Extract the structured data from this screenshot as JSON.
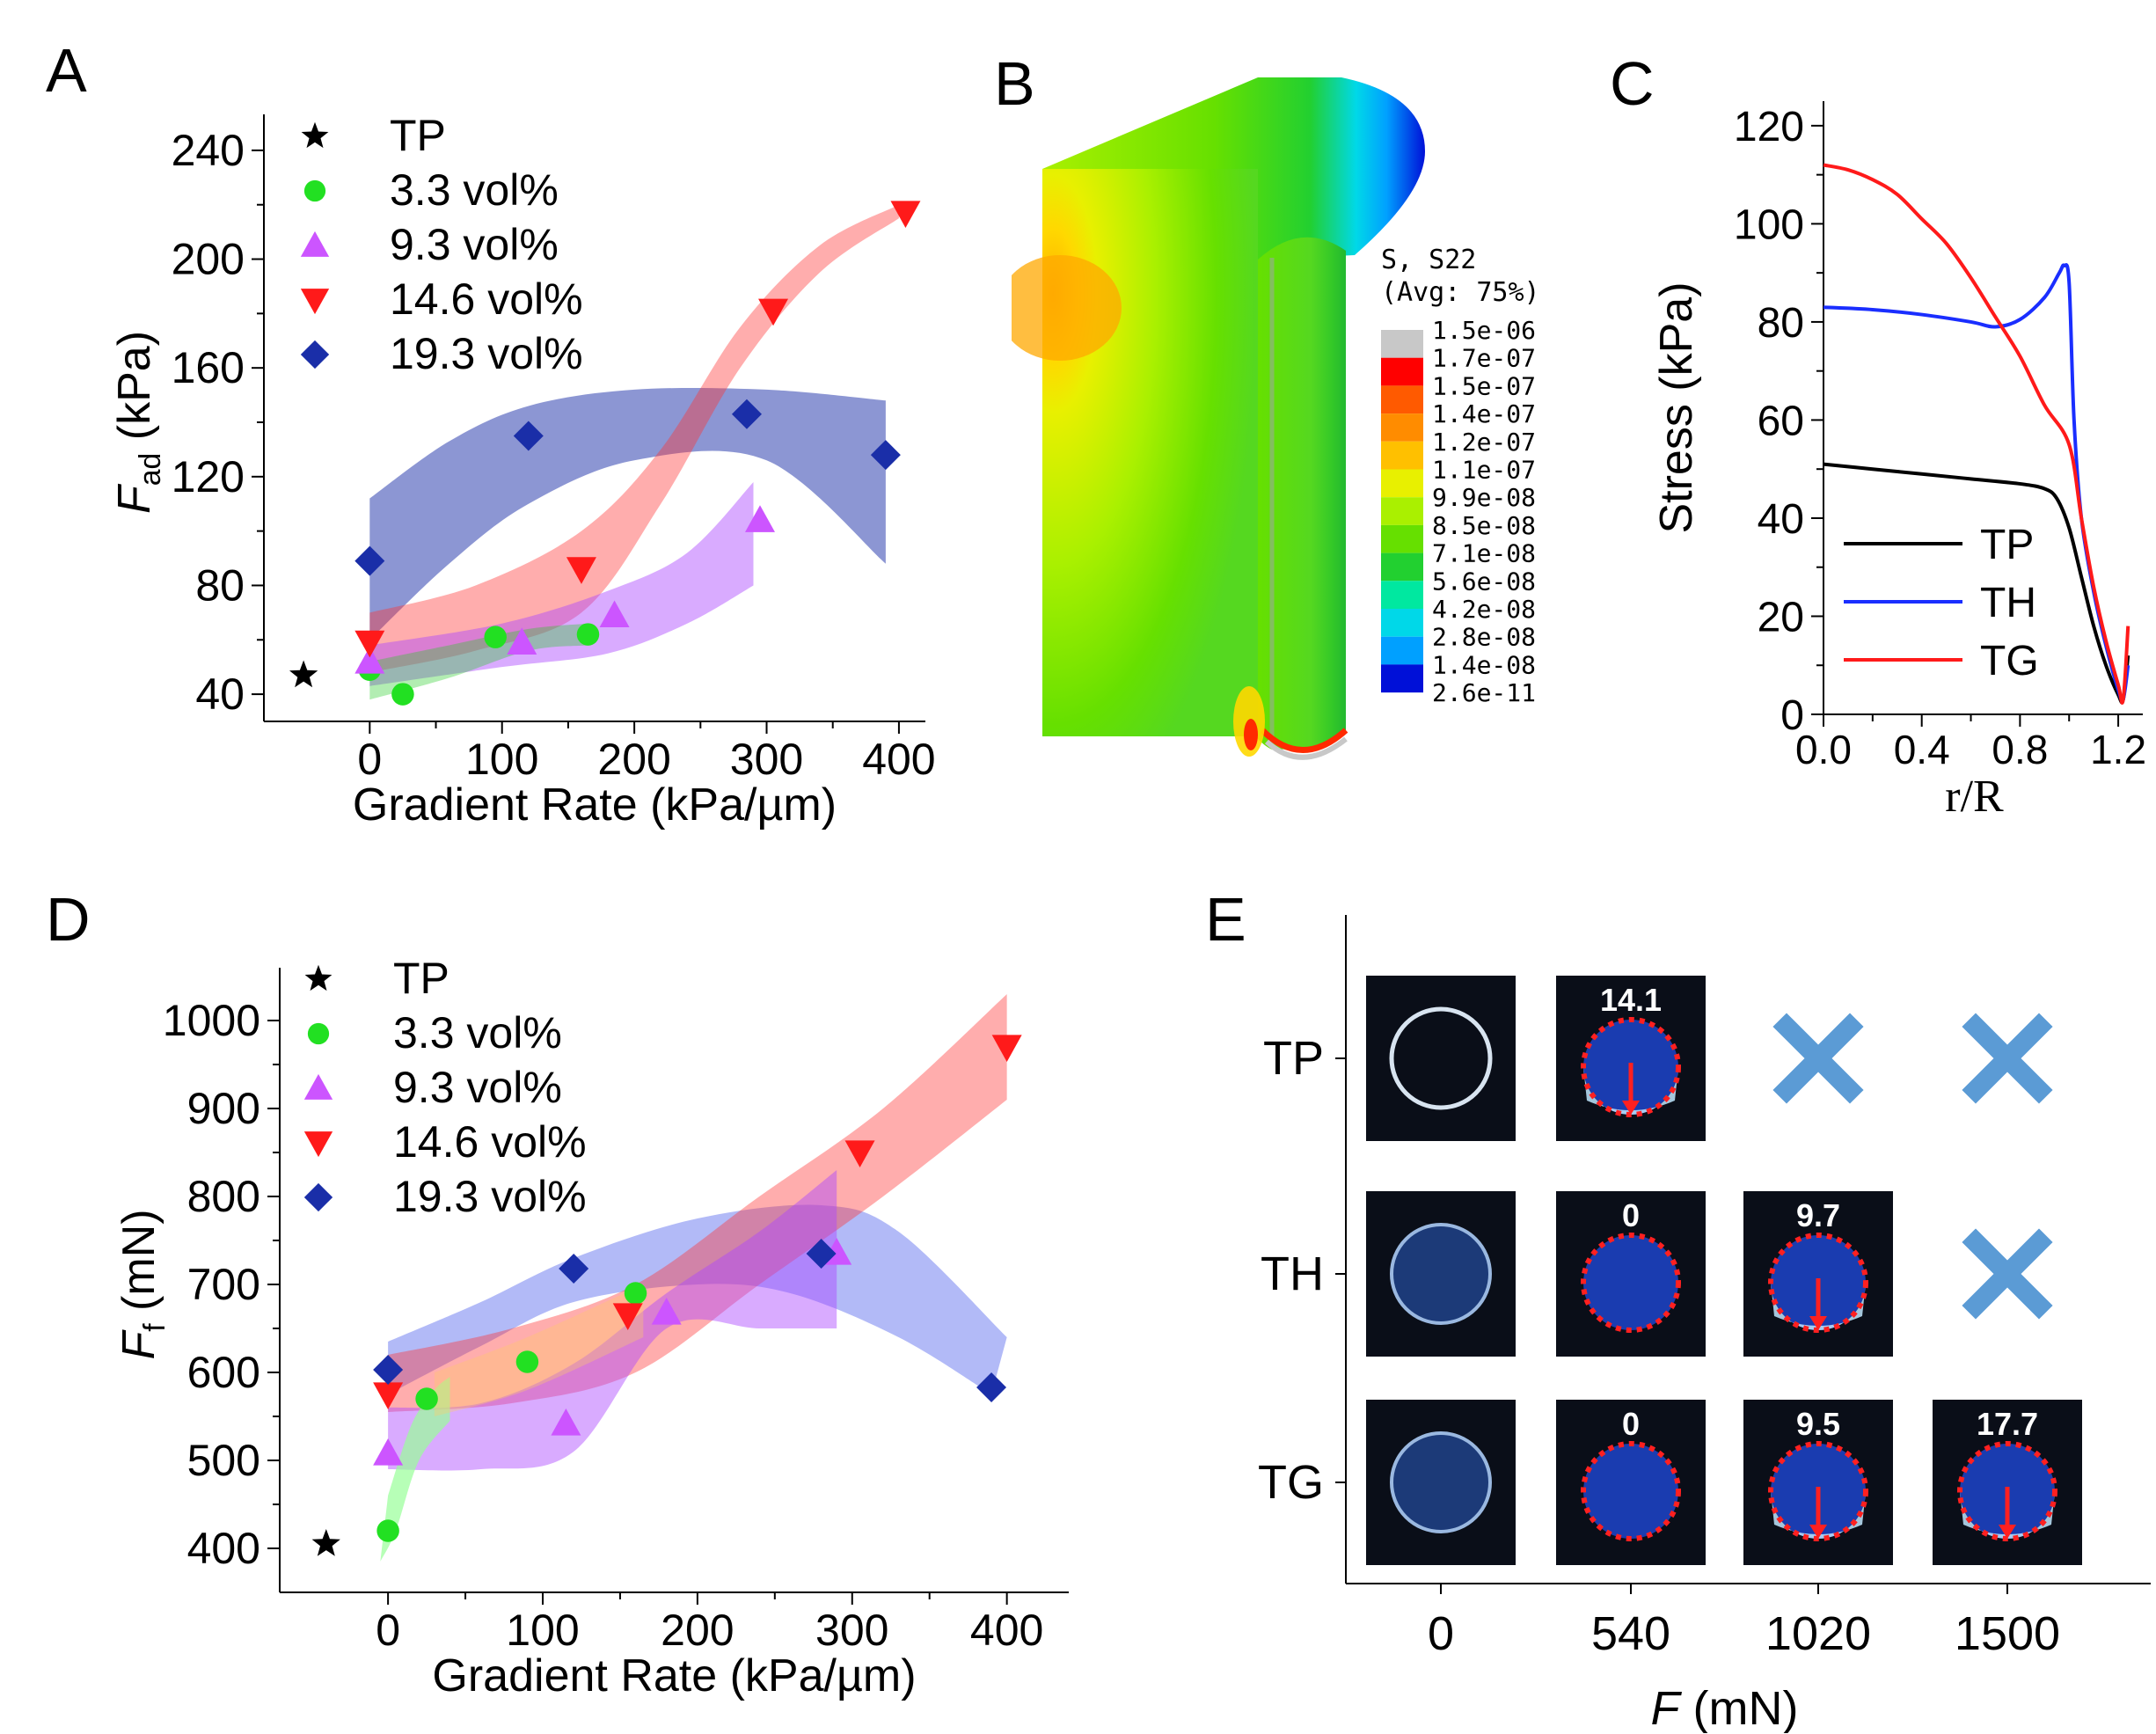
{
  "panels": {
    "A": "A",
    "B": "B",
    "C": "C",
    "D": "D",
    "E": "E"
  },
  "legend_ad": [
    {
      "label": "TP",
      "marker": "star",
      "color": "#000000"
    },
    {
      "label": "3.3 vol%",
      "marker": "circle",
      "color": "#22e022"
    },
    {
      "label": "9.3 vol%",
      "marker": "tri-up",
      "color": "#cc55ff"
    },
    {
      "label": "14.6 vol%",
      "marker": "tri-down",
      "color": "#ff1a1a"
    },
    {
      "label": "19.3 vol%",
      "marker": "diamond",
      "color": "#1a2ea8"
    }
  ],
  "chart_data": [
    {
      "id": "A",
      "type": "scatter",
      "xlabel": "Gradient Rate (kPa/µm)",
      "ylabel_main": "F",
      "ylabel_sub": "ad",
      "ylabel_unit": " (kPa)",
      "xlim": [
        -80,
        420
      ],
      "ylim": [
        30,
        250
      ],
      "xticks": [
        0,
        100,
        200,
        300,
        400
      ],
      "yticks": [
        40,
        80,
        120,
        160,
        200,
        240
      ],
      "series": [
        {
          "name": "TP",
          "marker": "star",
          "color": "#000000",
          "points": [
            [
              -50,
              47
            ]
          ]
        },
        {
          "name": "3.3 vol%",
          "marker": "circle",
          "color": "#22e022",
          "points": [
            [
              0,
              49
            ],
            [
              25,
              40
            ],
            [
              95,
              61
            ],
            [
              165,
              62
            ]
          ]
        },
        {
          "name": "9.3 vol%",
          "marker": "tri-up",
          "color": "#cc55ff",
          "points": [
            [
              0,
              52
            ],
            [
              115,
              59
            ],
            [
              185,
              69
            ],
            [
              295,
              104
            ]
          ]
        },
        {
          "name": "14.6 vol%",
          "marker": "tri-down",
          "color": "#ff1a1a",
          "points": [
            [
              0,
              59
            ],
            [
              160,
              86
            ],
            [
              305,
              181
            ],
            [
              405,
              217
            ]
          ]
        },
        {
          "name": "19.3 vol%",
          "marker": "diamond",
          "color": "#1a2ea8",
          "points": [
            [
              0,
              89
            ],
            [
              120,
              135
            ],
            [
              285,
              143
            ],
            [
              390,
              128
            ]
          ]
        }
      ],
      "bands": [
        {
          "color": "#1a2ea8",
          "opacity": 0.5,
          "upper": [
            [
              0,
              112
            ],
            [
              60,
              133
            ],
            [
              120,
              146
            ],
            [
              200,
              152
            ],
            [
              300,
              152
            ],
            [
              390,
              148
            ]
          ],
          "lower": [
            [
              0,
              60
            ],
            [
              60,
              88
            ],
            [
              120,
              110
            ],
            [
              200,
              126
            ],
            [
              300,
              126
            ],
            [
              390,
              88
            ]
          ]
        },
        {
          "color": "#ff3333",
          "opacity": 0.4,
          "upper": [
            [
              0,
              70
            ],
            [
              80,
              80
            ],
            [
              160,
              100
            ],
            [
              220,
              130
            ],
            [
              280,
              175
            ],
            [
              340,
              205
            ],
            [
              400,
              220
            ]
          ],
          "lower": [
            [
              0,
              48
            ],
            [
              80,
              56
            ],
            [
              160,
              70
            ],
            [
              220,
              110
            ],
            [
              280,
              160
            ],
            [
              340,
              195
            ],
            [
              400,
              215
            ]
          ]
        },
        {
          "color": "#aa44ff",
          "opacity": 0.45,
          "upper": [
            [
              0,
              58
            ],
            [
              100,
              66
            ],
            [
              180,
              78
            ],
            [
              240,
              92
            ],
            [
              290,
              118
            ]
          ],
          "lower": [
            [
              0,
              43
            ],
            [
              100,
              50
            ],
            [
              180,
              55
            ],
            [
              240,
              66
            ],
            [
              290,
              80
            ]
          ]
        },
        {
          "color": "#22cc22",
          "opacity": 0.35,
          "upper": [
            [
              0,
              52
            ],
            [
              60,
              58
            ],
            [
              120,
              64
            ],
            [
              165,
              66
            ]
          ],
          "lower": [
            [
              0,
              38
            ],
            [
              60,
              46
            ],
            [
              120,
              56
            ],
            [
              165,
              58
            ]
          ]
        }
      ]
    },
    {
      "id": "C",
      "type": "line",
      "xlabel": "r/R",
      "ylabel": "Stress (kPa)",
      "xlim": [
        0,
        1.3
      ],
      "ylim": [
        0,
        125
      ],
      "xticks": [
        0.0,
        0.4,
        0.8,
        1.2
      ],
      "xtick_labels": [
        "0.0",
        "0.4",
        "0.8",
        "1.2"
      ],
      "yticks": [
        0,
        20,
        40,
        60,
        80,
        100,
        120
      ],
      "series": [
        {
          "name": "TP",
          "color": "#000000",
          "points": [
            [
              0,
              51
            ],
            [
              0.2,
              50
            ],
            [
              0.4,
              49
            ],
            [
              0.6,
              48
            ],
            [
              0.8,
              47
            ],
            [
              0.9,
              46
            ],
            [
              0.95,
              44
            ],
            [
              1.0,
              38
            ],
            [
              1.05,
              28
            ],
            [
              1.1,
              18
            ],
            [
              1.15,
              10
            ],
            [
              1.2,
              4
            ],
            [
              1.22,
              3
            ],
            [
              1.24,
              12
            ]
          ]
        },
        {
          "name": "TH",
          "color": "#1a2eff",
          "points": [
            [
              0,
              83
            ],
            [
              0.2,
              82.5
            ],
            [
              0.4,
              81.5
            ],
            [
              0.6,
              80
            ],
            [
              0.7,
              79
            ],
            [
              0.8,
              80.5
            ],
            [
              0.9,
              85
            ],
            [
              0.96,
              90
            ],
            [
              0.98,
              91.5
            ],
            [
              1.0,
              88
            ],
            [
              1.02,
              60
            ],
            [
              1.05,
              40
            ],
            [
              1.1,
              25
            ],
            [
              1.15,
              14
            ],
            [
              1.2,
              5
            ],
            [
              1.22,
              3
            ],
            [
              1.24,
              10
            ]
          ]
        },
        {
          "name": "TG",
          "color": "#ff1a1a",
          "points": [
            [
              0,
              112
            ],
            [
              0.1,
              111
            ],
            [
              0.2,
              109
            ],
            [
              0.3,
              106
            ],
            [
              0.4,
              101
            ],
            [
              0.5,
              96
            ],
            [
              0.6,
              89
            ],
            [
              0.7,
              81
            ],
            [
              0.8,
              73
            ],
            [
              0.9,
              63
            ],
            [
              1.0,
              55
            ],
            [
              1.05,
              40
            ],
            [
              1.1,
              26
            ],
            [
              1.15,
              15
            ],
            [
              1.2,
              6
            ],
            [
              1.22,
              3
            ],
            [
              1.24,
              18
            ]
          ]
        }
      ]
    },
    {
      "id": "D",
      "type": "scatter",
      "xlabel": "Gradient Rate (kPa/µm)",
      "ylabel_main": "F",
      "ylabel_sub": "f",
      "ylabel_unit": " (mN)",
      "xlim": [
        -70,
        440
      ],
      "ylim": [
        350,
        1050
      ],
      "xticks": [
        0,
        100,
        200,
        300,
        400
      ],
      "yticks": [
        400,
        500,
        600,
        700,
        800,
        900,
        1000
      ],
      "series": [
        {
          "name": "TP",
          "marker": "star",
          "color": "#000000",
          "points": [
            [
              -40,
              405
            ]
          ]
        },
        {
          "name": "3.3 vol%",
          "marker": "circle",
          "color": "#22e022",
          "points": [
            [
              0,
              420
            ],
            [
              25,
              570
            ],
            [
              90,
              612
            ],
            [
              160,
              690
            ]
          ]
        },
        {
          "name": "9.3 vol%",
          "marker": "tri-up",
          "color": "#cc55ff",
          "points": [
            [
              0,
              508
            ],
            [
              115,
              542
            ],
            [
              180,
              668
            ],
            [
              290,
              736
            ]
          ]
        },
        {
          "name": "14.6 vol%",
          "marker": "tri-down",
          "color": "#ff1a1a",
          "points": [
            [
              0,
              575
            ],
            [
              155,
              665
            ],
            [
              305,
              850
            ],
            [
              400,
              970
            ]
          ]
        },
        {
          "name": "19.3 vol%",
          "marker": "diamond",
          "color": "#1a2ea8",
          "points": [
            [
              0,
              603
            ],
            [
              120,
              718
            ],
            [
              280,
              735
            ],
            [
              390,
              583
            ]
          ]
        }
      ],
      "bands": [
        {
          "color": "#5566ee",
          "opacity": 0.45,
          "upper": [
            [
              0,
              635
            ],
            [
              60,
              680
            ],
            [
              120,
              730
            ],
            [
              200,
              775
            ],
            [
              280,
              790
            ],
            [
              330,
              760
            ],
            [
              400,
              640
            ]
          ],
          "lower": [
            [
              0,
              575
            ],
            [
              60,
              630
            ],
            [
              120,
              680
            ],
            [
              200,
              700
            ],
            [
              260,
              690
            ],
            [
              330,
              640
            ],
            [
              390,
              575
            ]
          ]
        },
        {
          "color": "#ff3333",
          "opacity": 0.4,
          "upper": [
            [
              0,
              620
            ],
            [
              80,
              650
            ],
            [
              160,
              700
            ],
            [
              240,
              800
            ],
            [
              320,
              900
            ],
            [
              400,
              1030
            ]
          ],
          "lower": [
            [
              0,
              555
            ],
            [
              80,
              565
            ],
            [
              160,
              600
            ],
            [
              240,
              700
            ],
            [
              320,
              800
            ],
            [
              400,
              910
            ]
          ]
        },
        {
          "color": "#aa44ff",
          "opacity": 0.45,
          "upper": [
            [
              0,
              560
            ],
            [
              60,
              565
            ],
            [
              120,
              610
            ],
            [
              180,
              690
            ],
            [
              240,
              760
            ],
            [
              290,
              830
            ]
          ],
          "lower": [
            [
              0,
              490
            ],
            [
              60,
              490
            ],
            [
              120,
              510
            ],
            [
              180,
              650
            ],
            [
              240,
              650
            ],
            [
              290,
              650
            ]
          ]
        },
        {
          "color": "#99ff99",
          "opacity": 0.7,
          "upper": [
            [
              0,
              460
            ],
            [
              15,
              540
            ],
            [
              30,
              580
            ],
            [
              40,
              595
            ]
          ],
          "lower": [
            [
              -5,
              385
            ],
            [
              5,
              420
            ],
            [
              20,
              500
            ],
            [
              40,
              545
            ]
          ]
        },
        {
          "color": "#ffcc66",
          "opacity": 0.35,
          "upper": [
            [
              30,
              600
            ],
            [
              90,
              640
            ],
            [
              165,
              700
            ]
          ],
          "lower": [
            [
              30,
              550
            ],
            [
              90,
              580
            ],
            [
              165,
              640
            ]
          ]
        }
      ]
    }
  ],
  "panelB": {
    "legend_title_1": "S, S22",
    "legend_title_2": "(Avg: 75%)",
    "levels": [
      "1.5e-06",
      "1.7e-07",
      "1.5e-07",
      "1.4e-07",
      "1.2e-07",
      "1.1e-07",
      "9.9e-08",
      "8.5e-08",
      "7.1e-08",
      "5.6e-08",
      "4.2e-08",
      "2.8e-08",
      "1.4e-08",
      "2.6e-11"
    ],
    "colors": [
      "#c8c8c8",
      "#ff0000",
      "#ff5a00",
      "#ff8c00",
      "#ffc000",
      "#e8f000",
      "#aaf000",
      "#66e000",
      "#22d030",
      "#00e8a0",
      "#00d8e8",
      "#00a0ff",
      "#0058ff",
      "#0010d8"
    ]
  },
  "panelE": {
    "rows": [
      "TP",
      "TH",
      "TG"
    ],
    "xvalues": [
      "0",
      "540",
      "1020",
      "1500"
    ],
    "xlabel_main": "F",
    "xlabel_unit": " (mN)",
    "cells": [
      [
        {
          "kind": "ring"
        },
        {
          "kind": "shift",
          "label": "14.1"
        },
        {
          "kind": "cross"
        },
        {
          "kind": "cross"
        }
      ],
      [
        {
          "kind": "disc"
        },
        {
          "kind": "dotted",
          "label": "0"
        },
        {
          "kind": "shift",
          "label": "9.7"
        },
        {
          "kind": "cross"
        }
      ],
      [
        {
          "kind": "disc"
        },
        {
          "kind": "dotted",
          "label": "0"
        },
        {
          "kind": "shift",
          "label": "9.5"
        },
        {
          "kind": "shift",
          "label": "17.7"
        }
      ]
    ]
  }
}
